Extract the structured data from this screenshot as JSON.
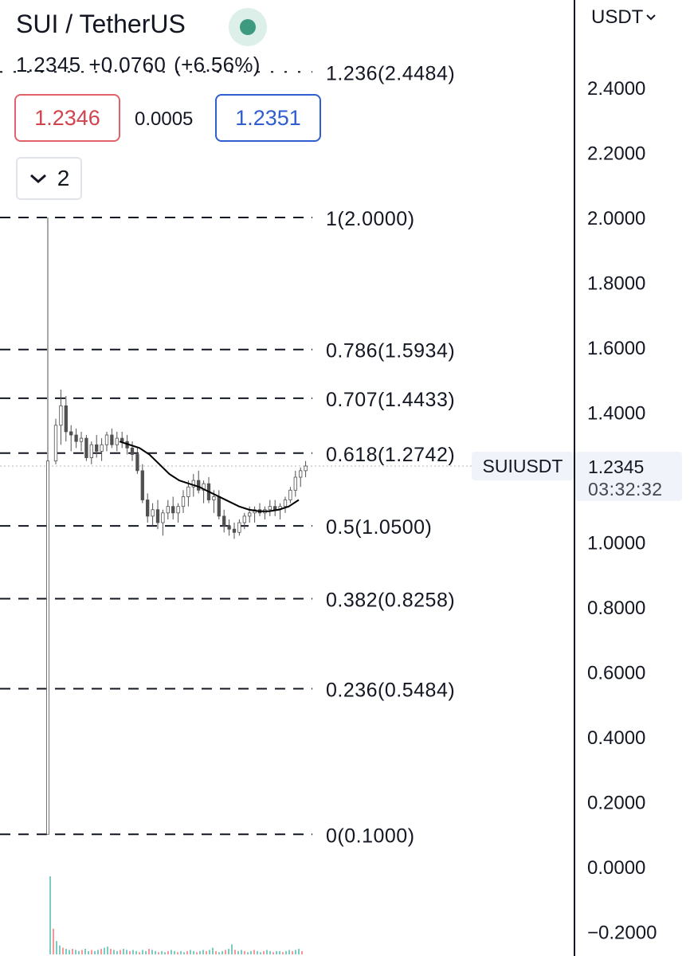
{
  "header": {
    "symbol_title": "SUI / TetherUS",
    "last_price": "1.2345",
    "change": "+0.0760",
    "change_pct": "(+6.56%)",
    "bid": "1.2346",
    "spread": "0.0005",
    "ask": "1.2351",
    "collapse_count": "2",
    "currency": "USDT"
  },
  "price_tag": {
    "symbol": "SUIUSDT",
    "price": "1.2345",
    "countdown": "03:32:32"
  },
  "colors": {
    "up": "#26a69a",
    "down": "#ef5350",
    "candle": "#505050",
    "moving_average": "#000000",
    "bid": "#d1434e",
    "ask": "#2f5ecf",
    "status": "#3d9a7e"
  },
  "chart_data": {
    "type": "candlestick",
    "ylim": [
      -0.2,
      2.5
    ],
    "y_axis_ticks": [
      "2.4000",
      "2.2000",
      "2.0000",
      "1.8000",
      "1.6000",
      "1.4000",
      "1.2000",
      "1.0000",
      "0.8000",
      "0.6000",
      "0.4000",
      "0.2000",
      "0.0000",
      "−0.2000"
    ],
    "fib_levels": [
      {
        "label": "1.236(2.4484)",
        "value": 2.4484
      },
      {
        "label": "1(2.0000)",
        "value": 2.0
      },
      {
        "label": "0.786(1.5934)",
        "value": 1.5934
      },
      {
        "label": "0.707(1.4433)",
        "value": 1.4433
      },
      {
        "label": "0.618(1.2742)",
        "value": 1.2742
      },
      {
        "label": "0.5(1.0500)",
        "value": 1.05
      },
      {
        "label": "0.382(0.8258)",
        "value": 0.8258
      },
      {
        "label": "0.236(0.5484)",
        "value": 0.5484
      },
      {
        "label": "0(0.1000)",
        "value": 0.1
      }
    ],
    "last_price": 1.2345,
    "candles": [
      [
        0.1,
        2.0,
        0.1,
        1.25
      ],
      [
        1.25,
        1.38,
        1.24,
        1.36
      ],
      [
        1.36,
        1.47,
        1.3,
        1.42
      ],
      [
        1.42,
        1.45,
        1.31,
        1.34
      ],
      [
        1.34,
        1.36,
        1.28,
        1.33
      ],
      [
        1.33,
        1.35,
        1.29,
        1.31
      ],
      [
        1.31,
        1.34,
        1.28,
        1.32
      ],
      [
        1.32,
        1.33,
        1.25,
        1.26
      ],
      [
        1.26,
        1.31,
        1.24,
        1.3
      ],
      [
        1.3,
        1.33,
        1.26,
        1.28
      ],
      [
        1.28,
        1.32,
        1.25,
        1.3
      ],
      [
        1.3,
        1.34,
        1.28,
        1.33
      ],
      [
        1.33,
        1.35,
        1.29,
        1.3
      ],
      [
        1.3,
        1.34,
        1.28,
        1.32
      ],
      [
        1.32,
        1.34,
        1.29,
        1.31
      ],
      [
        1.31,
        1.33,
        1.27,
        1.29
      ],
      [
        1.29,
        1.31,
        1.25,
        1.27
      ],
      [
        1.27,
        1.29,
        1.21,
        1.22
      ],
      [
        1.22,
        1.24,
        1.12,
        1.13
      ],
      [
        1.13,
        1.15,
        1.06,
        1.08
      ],
      [
        1.08,
        1.12,
        1.05,
        1.1
      ],
      [
        1.1,
        1.13,
        1.04,
        1.06
      ],
      [
        1.06,
        1.1,
        1.02,
        1.09
      ],
      [
        1.09,
        1.13,
        1.07,
        1.11
      ],
      [
        1.11,
        1.14,
        1.07,
        1.09
      ],
      [
        1.09,
        1.12,
        1.06,
        1.11
      ],
      [
        1.11,
        1.16,
        1.09,
        1.14
      ],
      [
        1.14,
        1.19,
        1.11,
        1.17
      ],
      [
        1.17,
        1.21,
        1.14,
        1.19
      ],
      [
        1.19,
        1.22,
        1.15,
        1.16
      ],
      [
        1.16,
        1.19,
        1.12,
        1.18
      ],
      [
        1.18,
        1.2,
        1.12,
        1.13
      ],
      [
        1.13,
        1.16,
        1.09,
        1.14
      ],
      [
        1.14,
        1.16,
        1.07,
        1.08
      ],
      [
        1.08,
        1.1,
        1.03,
        1.05
      ],
      [
        1.05,
        1.07,
        1.02,
        1.04
      ],
      [
        1.04,
        1.06,
        1.01,
        1.03
      ],
      [
        1.03,
        1.07,
        1.02,
        1.06
      ],
      [
        1.06,
        1.09,
        1.04,
        1.08
      ],
      [
        1.08,
        1.11,
        1.06,
        1.09
      ],
      [
        1.09,
        1.11,
        1.06,
        1.1
      ],
      [
        1.1,
        1.12,
        1.08,
        1.09
      ],
      [
        1.09,
        1.11,
        1.07,
        1.1
      ],
      [
        1.1,
        1.13,
        1.08,
        1.11
      ],
      [
        1.11,
        1.13,
        1.08,
        1.1
      ],
      [
        1.1,
        1.12,
        1.07,
        1.11
      ],
      [
        1.11,
        1.14,
        1.09,
        1.13
      ],
      [
        1.13,
        1.17,
        1.12,
        1.16
      ],
      [
        1.16,
        1.22,
        1.14,
        1.2
      ],
      [
        1.2,
        1.23,
        1.17,
        1.22
      ],
      [
        1.22,
        1.25,
        1.2,
        1.2345
      ]
    ],
    "moving_average": [
      1.31,
      1.3,
      1.29,
      1.27,
      1.24,
      1.21,
      1.19,
      1.18,
      1.17,
      1.155,
      1.14,
      1.125,
      1.11,
      1.1,
      1.095,
      1.095,
      1.1,
      1.11,
      1.13
    ],
    "volume": [
      70,
      23,
      12,
      8,
      6,
      5,
      4,
      5,
      4,
      3,
      4,
      5,
      3,
      4,
      3,
      4,
      5,
      6,
      7,
      5,
      4,
      3,
      4,
      5,
      4,
      3,
      4,
      3,
      2,
      4,
      3,
      5,
      4,
      3,
      2,
      3,
      2,
      3,
      4,
      3,
      2,
      3,
      2,
      3,
      4,
      3,
      2,
      3,
      4,
      3,
      4,
      6,
      3,
      2,
      3,
      4,
      5,
      9,
      4,
      3,
      4,
      3,
      2,
      3,
      4,
      3,
      2,
      3,
      4,
      3,
      2,
      3,
      3,
      2,
      3,
      4,
      3,
      4,
      5,
      3
    ]
  }
}
